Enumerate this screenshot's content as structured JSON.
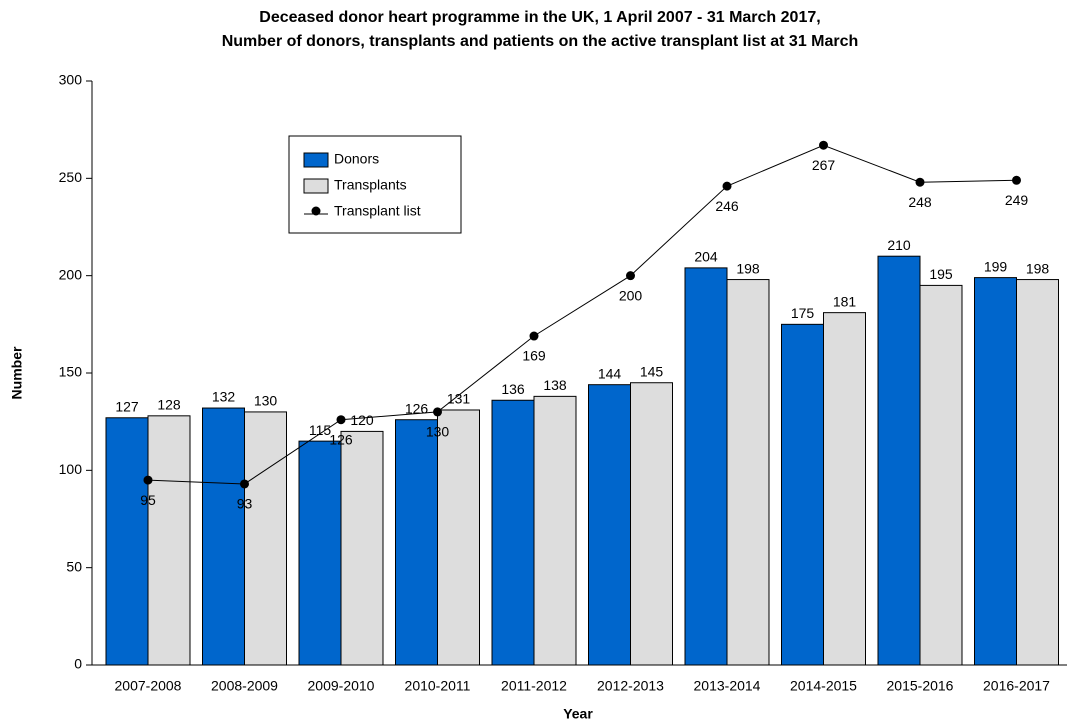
{
  "chart_data": {
    "type": "bar",
    "title": [
      "Deceased donor heart programme in the UK, 1 April 2007 - 31 March 2017,",
      "Number of donors, transplants and patients on the active transplant list at 31 March"
    ],
    "xlabel": "Year",
    "ylabel": "Number",
    "categories": [
      "2007-2008",
      "2008-2009",
      "2009-2010",
      "2010-2011",
      "2011-2012",
      "2012-2013",
      "2013-2014",
      "2014-2015",
      "2015-2016",
      "2016-2017"
    ],
    "series": [
      {
        "name": "Donors",
        "type": "bar",
        "color": "#0066cc",
        "values": [
          127,
          132,
          115,
          126,
          136,
          144,
          204,
          175,
          210,
          199
        ]
      },
      {
        "name": "Transplants",
        "type": "bar",
        "color": "#dddddd",
        "values": [
          128,
          130,
          120,
          131,
          138,
          145,
          198,
          181,
          195,
          198
        ]
      },
      {
        "name": "Transplant list",
        "type": "line",
        "color": "#000000",
        "values": [
          95,
          93,
          126,
          130,
          169,
          200,
          246,
          267,
          248,
          249
        ]
      }
    ],
    "ylim": [
      0,
      300
    ],
    "yticks": [
      0,
      50,
      100,
      150,
      200,
      250,
      300
    ],
    "grid": false,
    "legend": "upper left"
  }
}
